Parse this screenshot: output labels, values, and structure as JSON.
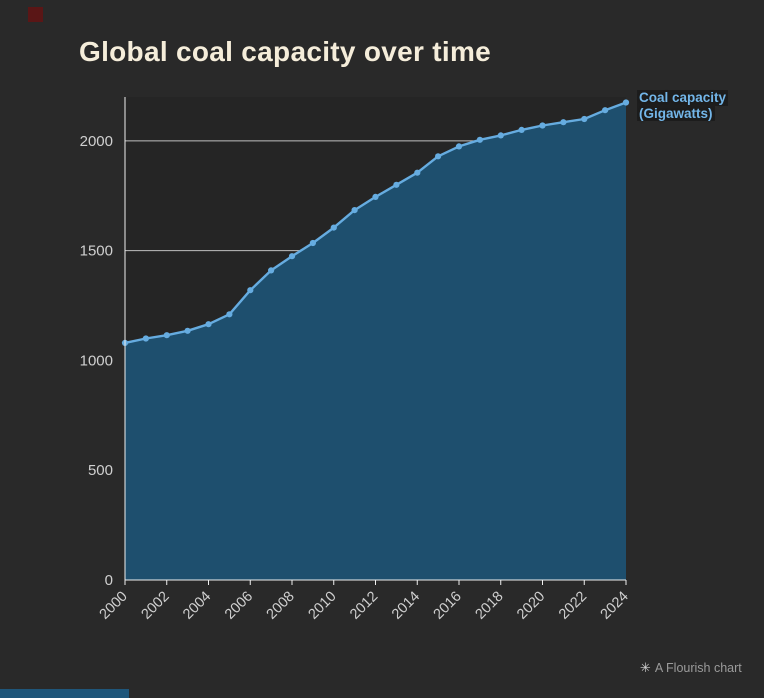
{
  "chart_data": {
    "type": "area",
    "title": "Global coal capacity over time",
    "xlabel": "",
    "ylabel": "Coal capacity (Gigawatts)",
    "series_label": {
      "line1": "Coal capacity",
      "line2": "(Gigawatts)"
    },
    "x": [
      2000,
      2001,
      2002,
      2003,
      2004,
      2005,
      2006,
      2007,
      2008,
      2009,
      2010,
      2011,
      2012,
      2013,
      2014,
      2015,
      2016,
      2017,
      2018,
      2019,
      2020,
      2021,
      2022,
      2023,
      2024
    ],
    "values": [
      1080,
      1100,
      1115,
      1135,
      1165,
      1210,
      1320,
      1410,
      1475,
      1535,
      1605,
      1685,
      1745,
      1800,
      1855,
      1930,
      1975,
      2005,
      2025,
      2050,
      2070,
      2085,
      2100,
      2140,
      2175
    ],
    "ylim": [
      0,
      2200
    ],
    "yticks": [
      0,
      500,
      1000,
      1500,
      2000
    ],
    "xticks": [
      2000,
      2002,
      2004,
      2006,
      2008,
      2010,
      2012,
      2014,
      2016,
      2018,
      2020,
      2022,
      2024
    ],
    "x_range": [
      2000,
      2024
    ],
    "grid": "horizontal-only",
    "legend_position": "right-of-line-end",
    "colors": {
      "background": "#292929",
      "plot_bg": "#252525",
      "area": "#1e4f6e",
      "line": "#66ace0",
      "title": "#f5edda",
      "axis_text": "#d0d0d0",
      "gridline": "#e6e6e6",
      "axis_line": "#f0f0f0",
      "series_label": "#73b6e9"
    }
  },
  "footer": {
    "icon": "✳",
    "attribution": "A Flourish chart"
  }
}
